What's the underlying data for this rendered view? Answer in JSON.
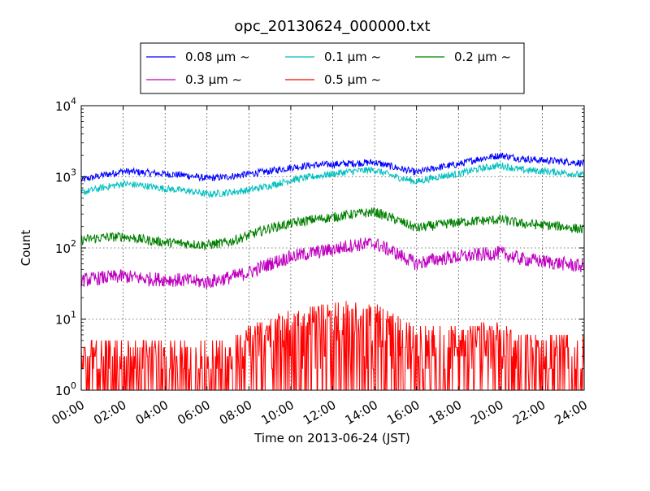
{
  "chart_data": {
    "type": "line",
    "title": "opc_20130624_000000.txt",
    "xlabel": "Time on 2013-06-24 (JST)",
    "ylabel": "Count",
    "yscale": "log",
    "ylim": [
      1,
      10000
    ],
    "xlim": [
      "00:00",
      "24:00"
    ],
    "x_ticks": [
      "00:00",
      "02:00",
      "04:00",
      "06:00",
      "08:00",
      "10:00",
      "12:00",
      "14:00",
      "16:00",
      "18:00",
      "20:00",
      "22:00",
      "24:00"
    ],
    "y_ticks": [
      {
        "base": "10",
        "exp": "0",
        "value": 1
      },
      {
        "base": "10",
        "exp": "1",
        "value": 10
      },
      {
        "base": "10",
        "exp": "2",
        "value": 100
      },
      {
        "base": "10",
        "exp": "3",
        "value": 1000
      },
      {
        "base": "10",
        "exp": "4",
        "value": 10000
      }
    ],
    "grid": true,
    "legend_position": "top-center",
    "x_hours": [
      0,
      1,
      2,
      3,
      4,
      5,
      6,
      7,
      8,
      9,
      10,
      11,
      12,
      13,
      14,
      15,
      16,
      17,
      18,
      19,
      20,
      21,
      22,
      23,
      24
    ],
    "series": [
      {
        "name": "0.08 μm ~",
        "color": "#0000ff",
        "values": [
          900,
          1050,
          1200,
          1150,
          1100,
          1050,
          950,
          1000,
          1100,
          1200,
          1350,
          1450,
          1500,
          1550,
          1600,
          1350,
          1150,
          1350,
          1500,
          1800,
          2000,
          1800,
          1700,
          1650,
          1550
        ]
      },
      {
        "name": "0.1 μm ~",
        "color": "#00bfbf",
        "values": [
          600,
          700,
          800,
          750,
          680,
          640,
          570,
          600,
          650,
          750,
          900,
          1000,
          1100,
          1200,
          1250,
          1000,
          850,
          1000,
          1100,
          1300,
          1450,
          1250,
          1200,
          1150,
          1050
        ]
      },
      {
        "name": "0.2 μm ~",
        "color": "#008000",
        "values": [
          130,
          140,
          145,
          130,
          120,
          115,
          110,
          120,
          150,
          190,
          220,
          250,
          270,
          300,
          320,
          250,
          190,
          210,
          230,
          240,
          250,
          220,
          210,
          200,
          180
        ]
      },
      {
        "name": "0.3 μm ~",
        "color": "#bf00bf",
        "values": [
          35,
          38,
          40,
          37,
          36,
          35,
          33,
          38,
          45,
          60,
          75,
          85,
          95,
          110,
          115,
          85,
          60,
          70,
          75,
          80,
          85,
          70,
          65,
          60,
          55
        ]
      },
      {
        "name": "0.5 μm ~",
        "color": "#ff0000",
        "values": [
          2.5,
          2.6,
          2.8,
          2.7,
          2.5,
          2.4,
          2.6,
          3,
          4,
          5.5,
          7,
          8,
          8.5,
          9,
          9,
          6,
          4,
          4,
          4.2,
          4.4,
          4.3,
          3.5,
          3,
          3,
          3
        ]
      }
    ]
  }
}
